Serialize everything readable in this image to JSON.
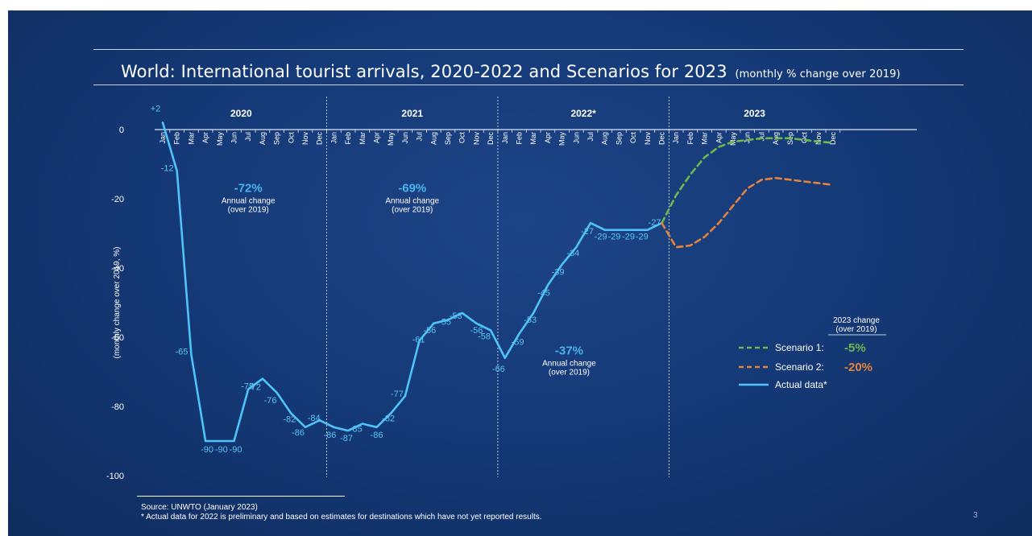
{
  "slide": {
    "title": "World: International tourist arrivals, 2020-2022 and Scenarios for 2023",
    "subtitle": "(monthly % change over 2019)",
    "page_number": "3",
    "source": "Source: UNWTO (January 2023)",
    "footnote": "* Actual data for 2022 is preliminary and based on estimates for destinations which have not yet reported results."
  },
  "chart_data": {
    "type": "line",
    "ylabel": "(monthly change over 2019, %)",
    "ylim": [
      -100,
      0
    ],
    "yticks": [
      "0",
      "-20",
      "-40",
      "-60",
      "-80",
      "-100"
    ],
    "grid": false,
    "years": [
      "2020",
      "2021",
      "2022*",
      "2023"
    ],
    "months": [
      "Jan",
      "Feb",
      "Mar",
      "Apr",
      "May",
      "Jun",
      "Jul",
      "Aug",
      "Sep",
      "Oct",
      "Nov",
      "Dec"
    ],
    "series": [
      {
        "name": "Actual data*",
        "color": "#4fc3f7",
        "style": "solid",
        "values": [
          2,
          -12,
          -65,
          -90,
          -90,
          -90,
          -75,
          -72,
          -76,
          -82,
          -86,
          -84,
          -86,
          -87,
          -85,
          -86,
          -82,
          -77,
          -61,
          -56,
          -55,
          -53,
          -56,
          -58,
          -66,
          -59,
          -53,
          -45,
          -39,
          -34,
          -27,
          -29,
          -29,
          -29,
          -29,
          -27
        ],
        "labels": [
          "+2",
          "-12",
          "-65",
          "-90",
          "-90",
          "-90",
          "-75",
          "-72",
          "-76",
          "-82",
          "-86",
          "-84",
          "-86",
          "-87",
          "-85",
          "-86",
          "-82",
          "-77",
          "-61",
          "-56",
          "-55",
          "-53",
          "-56",
          "-58",
          "-66",
          "-59",
          "-53",
          "-45",
          "-39",
          "-34",
          "-27",
          "-29",
          "-29",
          "-29",
          "-29",
          "-27"
        ]
      },
      {
        "name": "Scenario 1:",
        "result": "-5%",
        "color": "#6fb84a",
        "style": "dashed",
        "start_index": 35,
        "values": [
          -27,
          -19,
          -13,
          -8,
          -5,
          -3.5,
          -3,
          -2.5,
          -2.5,
          -2.5,
          -3,
          -3.5,
          -3.8
        ]
      },
      {
        "name": "Scenario 2:",
        "result": "-20%",
        "color": "#e5833a",
        "style": "dashed",
        "start_index": 35,
        "values": [
          -27,
          -34,
          -33.5,
          -31,
          -27,
          -22,
          -17,
          -14.5,
          -14,
          -14.5,
          -15,
          -15.5,
          -16
        ]
      }
    ],
    "annotations": [
      {
        "value": "-72%",
        "text1": "Annual change",
        "text2": "(over 2019)",
        "at_index": 6,
        "at_y": -18
      },
      {
        "value": "-69%",
        "text1": "Annual change",
        "text2": "(over 2019)",
        "at_index": 17.5,
        "at_y": -18
      },
      {
        "value": "-37%",
        "text1": "Annual change",
        "text2": "(over 2019)",
        "at_index": 28.5,
        "at_y": -65
      }
    ],
    "legend": {
      "header1": "2023 change",
      "header2": "(over 2019)",
      "position": "bottom-right"
    }
  }
}
